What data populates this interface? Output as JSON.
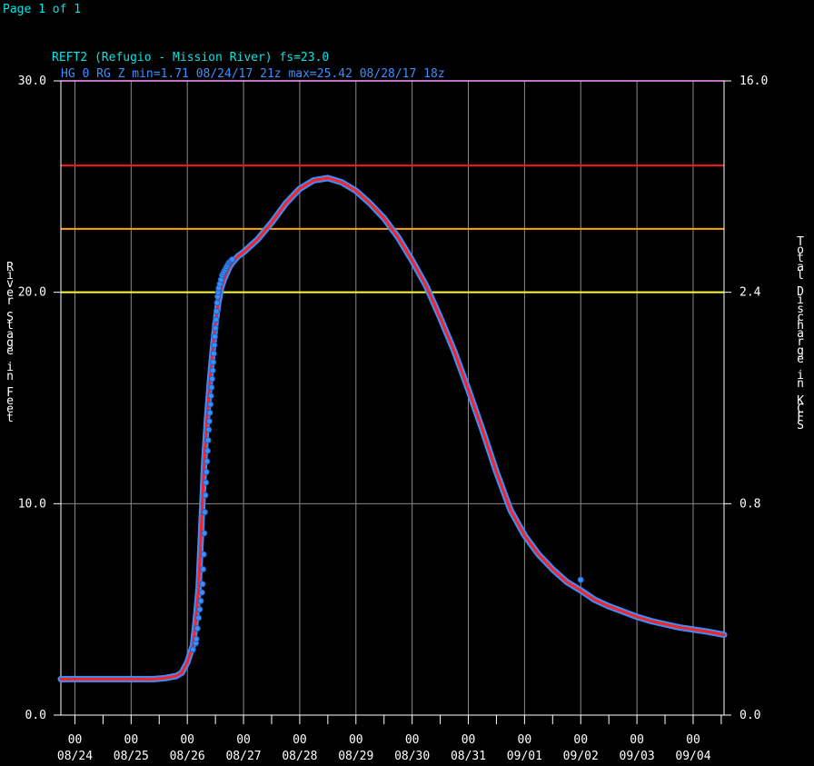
{
  "page_label": "Page 1 of 1",
  "colors": {
    "background": "#000000",
    "axis": "#ffffff",
    "grid": "#8a8a8a",
    "title": "#00e5e5",
    "subtitle": "#3a8fff",
    "obs_outline": "#3a8fff",
    "obs_fill": "#ff2020",
    "flood_major": "#ff1a1a",
    "flood_moderate": "#ffa500",
    "flood_minor": "#ffff33",
    "top_line": "#ff99ff"
  },
  "chart_data": {
    "type": "line",
    "title": "REFT2 (Refugio - Mission River) fs=23.0",
    "subtitle": "HG 0 RG Z  min=1.71 08/24/17 21z max=25.42 08/28/17 18z",
    "ylabel_left": "River Stage in Feet",
    "ylabel_right": "Total Discharge in KCFS",
    "ylim": [
      0,
      30
    ],
    "y_ticks_left": [
      "0.0",
      "10.0",
      "20.0",
      "30.0"
    ],
    "y_ticks_right": [
      "0.0",
      "0.8",
      "2.4",
      "16.0"
    ],
    "xlim": [
      -0.25,
      11.55
    ],
    "x_ticks": [
      {
        "hour": "00",
        "date": "08/24"
      },
      {
        "hour": "00",
        "date": "08/25"
      },
      {
        "hour": "00",
        "date": "08/26"
      },
      {
        "hour": "00",
        "date": "08/27"
      },
      {
        "hour": "00",
        "date": "08/28"
      },
      {
        "hour": "00",
        "date": "08/29"
      },
      {
        "hour": "00",
        "date": "08/30"
      },
      {
        "hour": "00",
        "date": "08/31"
      },
      {
        "hour": "00",
        "date": "09/01"
      },
      {
        "hour": "00",
        "date": "09/02"
      },
      {
        "hour": "00",
        "date": "09/03"
      },
      {
        "hour": "00",
        "date": "09/04"
      }
    ],
    "thresholds": [
      {
        "stage": 26.0,
        "color": "#ff1a1a"
      },
      {
        "stage": 23.0,
        "color": "#ffa500"
      },
      {
        "stage": 20.0,
        "color": "#ffff33"
      }
    ],
    "observed_stage": {
      "x": [
        -0.25,
        0.5,
        1.0,
        1.4,
        1.6,
        1.8,
        1.9,
        2.0,
        2.05,
        2.1,
        2.15,
        2.2,
        2.25,
        2.3,
        2.35,
        2.4,
        2.45,
        2.5,
        2.55,
        2.6,
        2.65,
        2.7,
        2.75,
        2.8,
        2.9,
        3.0,
        3.25,
        3.5,
        3.75,
        4.0,
        4.25,
        4.5,
        4.75,
        5.0,
        5.25,
        5.5,
        5.75,
        6.0,
        6.25,
        6.5,
        6.75,
        7.0,
        7.25,
        7.5,
        7.75,
        8.0,
        8.25,
        8.5,
        8.75,
        9.0,
        9.25,
        9.5,
        9.75,
        10.0,
        10.25,
        10.5,
        10.75,
        11.0,
        11.25,
        11.55
      ],
      "y": [
        1.7,
        1.7,
        1.7,
        1.7,
        1.75,
        1.85,
        2.0,
        2.5,
        2.9,
        3.3,
        4.5,
        6.0,
        9.0,
        12.0,
        14.0,
        15.7,
        17.2,
        18.5,
        19.5,
        20.2,
        20.6,
        20.9,
        21.2,
        21.4,
        21.7,
        21.9,
        22.5,
        23.3,
        24.2,
        24.9,
        25.3,
        25.4,
        25.2,
        24.8,
        24.2,
        23.5,
        22.6,
        21.5,
        20.3,
        18.8,
        17.2,
        15.4,
        13.5,
        11.5,
        9.7,
        8.5,
        7.6,
        6.9,
        6.3,
        5.9,
        5.45,
        5.15,
        4.9,
        4.65,
        4.45,
        4.3,
        4.15,
        4.05,
        3.95,
        3.8
      ]
    },
    "observed_points": {
      "x": [
        2.1,
        2.15,
        2.16,
        2.18,
        2.2,
        2.22,
        2.24,
        2.26,
        2.27,
        2.28,
        2.29,
        2.3,
        2.31,
        2.32,
        2.33,
        2.34,
        2.35,
        2.36,
        2.37,
        2.38,
        2.39,
        2.4,
        2.41,
        2.42,
        2.43,
        2.44,
        2.45,
        2.46,
        2.47,
        2.48,
        2.49,
        2.5,
        2.51,
        2.52,
        2.53,
        2.54,
        2.55,
        2.56,
        2.58,
        2.6,
        2.62,
        2.64,
        2.66,
        2.68,
        2.7,
        2.72,
        2.74,
        2.76,
        2.78,
        2.8,
        9.0
      ],
      "y": [
        3.1,
        3.4,
        3.6,
        4.1,
        4.6,
        5.0,
        5.4,
        5.8,
        6.2,
        6.9,
        7.6,
        8.6,
        9.6,
        10.4,
        11.0,
        11.5,
        12.0,
        12.5,
        13.0,
        13.5,
        13.9,
        14.3,
        14.7,
        15.1,
        15.5,
        15.9,
        16.3,
        16.7,
        17.1,
        17.5,
        17.9,
        18.3,
        18.7,
        19.1,
        19.5,
        19.8,
        20.0,
        20.2,
        20.4,
        20.6,
        20.8,
        20.9,
        21.0,
        21.1,
        21.2,
        21.3,
        21.4,
        21.45,
        21.5,
        21.55,
        6.4
      ]
    }
  }
}
